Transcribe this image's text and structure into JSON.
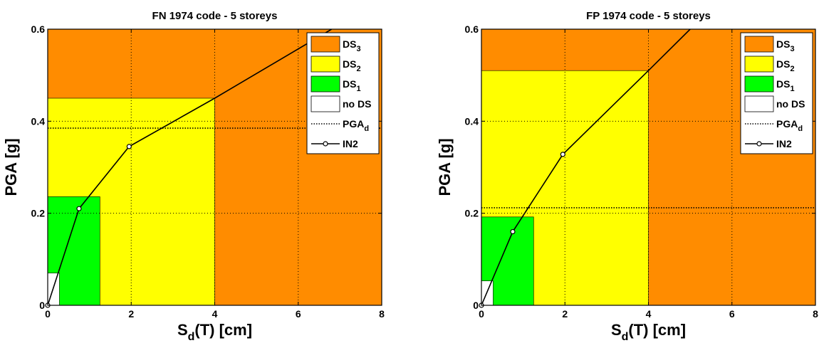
{
  "chart_data": [
    {
      "type": "area",
      "title": "FN 1974 code - 5 storeys",
      "xlabel": {
        "main": "S",
        "sub": "d",
        "rest": "(T) [cm]"
      },
      "ylabel": "PGA [g]",
      "xlim": [
        0,
        8
      ],
      "ylim": [
        0,
        0.6
      ],
      "xticks": [
        "0",
        "2",
        "4",
        "6",
        "8"
      ],
      "yticks": [
        "0",
        "0.2",
        "0.4",
        "0.6"
      ],
      "grid": true,
      "legend_position": "top-right",
      "regions": [
        {
          "name": "DS3",
          "color": "#ff8c00",
          "sd_max": 8,
          "pga_max": 0.6
        },
        {
          "name": "DS2",
          "color": "#ffff00",
          "sd_max": 4.0,
          "pga_max": 0.45
        },
        {
          "name": "DS1",
          "color": "#00ff00",
          "sd_max": 1.25,
          "pga_max": 0.236
        },
        {
          "name": "no DS",
          "color": "#ffffff",
          "sd_max": 0.28,
          "pga_max": 0.07
        }
      ],
      "pga_d": 0.385,
      "in2_curve": {
        "x": [
          0,
          0.75,
          1.95,
          4.0,
          6.8
        ],
        "y": [
          0,
          0.21,
          0.345,
          0.45,
          0.6
        ]
      },
      "in2_markers": {
        "x": [
          0,
          0.75,
          1.95
        ],
        "y": [
          0,
          0.21,
          0.345
        ]
      }
    },
    {
      "type": "area",
      "title": "FP 1974 code - 5 storeys",
      "xlabel": {
        "main": "S",
        "sub": "d",
        "rest": "(T) [cm]"
      },
      "ylabel": "PGA [g]",
      "xlim": [
        0,
        8
      ],
      "ylim": [
        0,
        0.6
      ],
      "xticks": [
        "0",
        "2",
        "4",
        "6",
        "8"
      ],
      "yticks": [
        "0",
        "0.2",
        "0.4",
        "0.6"
      ],
      "grid": true,
      "legend_position": "top-right",
      "regions": [
        {
          "name": "DS3",
          "color": "#ff8c00",
          "sd_max": 8,
          "pga_max": 0.6
        },
        {
          "name": "DS2",
          "color": "#ffff00",
          "sd_max": 4.0,
          "pga_max": 0.51
        },
        {
          "name": "DS1",
          "color": "#00ff00",
          "sd_max": 1.25,
          "pga_max": 0.192
        },
        {
          "name": "no DS",
          "color": "#ffffff",
          "sd_max": 0.28,
          "pga_max": 0.053
        }
      ],
      "pga_d": 0.212,
      "in2_curve": {
        "x": [
          0,
          0.75,
          1.95,
          4.0,
          5.0
        ],
        "y": [
          0,
          0.16,
          0.328,
          0.51,
          0.6
        ]
      },
      "in2_markers": {
        "x": [
          0,
          0.75,
          1.95
        ],
        "y": [
          0,
          0.16,
          0.328
        ]
      }
    }
  ],
  "legend": {
    "items": [
      {
        "key": "ds3",
        "main": "DS",
        "sub": "3",
        "swatch": "#ff8c00"
      },
      {
        "key": "ds2",
        "main": "DS",
        "sub": "2",
        "swatch": "#ffff00"
      },
      {
        "key": "ds1",
        "main": "DS",
        "sub": "1",
        "swatch": "#00ff00"
      },
      {
        "key": "nods",
        "main": "no DS",
        "sub": "",
        "swatch": "#ffffff"
      },
      {
        "key": "pgad",
        "main": "PGA",
        "sub": "d",
        "swatch": "dotted"
      },
      {
        "key": "in2",
        "main": "IN2",
        "sub": "",
        "swatch": "line-marker"
      }
    ]
  }
}
